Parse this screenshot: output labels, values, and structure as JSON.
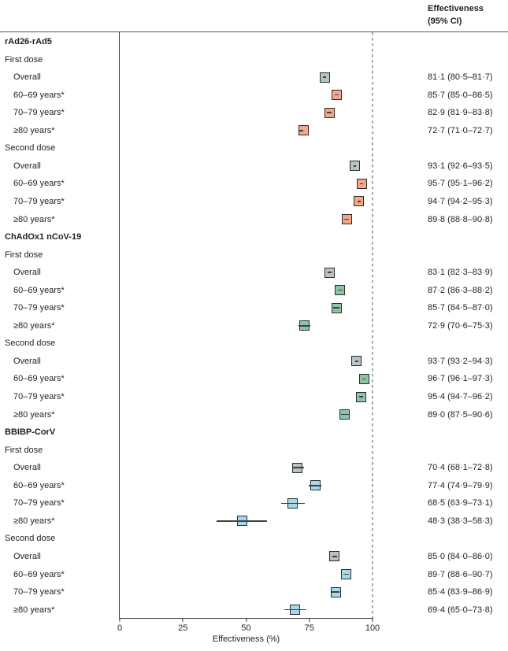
{
  "header": {
    "line1": "Effectiveness",
    "line2": "(95% CI)"
  },
  "colors": {
    "overall": "#b6c2c6",
    "rad26": "#f4a688",
    "chadox1": "#8dc4a5",
    "bbibp": "#a6d9e9",
    "marker_border": "#2b2b2b",
    "ci_line": "#404040",
    "reference_dash": "#9aabb2",
    "axis": "#3c3c3c"
  },
  "chart_data": {
    "type": "scatter",
    "variant": "forest-plot",
    "xlabel": "Effectiveness (%)",
    "xlim": [
      0,
      100
    ],
    "ticks": [
      0,
      25,
      50,
      75,
      100
    ],
    "reference_line_x": 100,
    "legend_note": "square = point estimate, horizontal line = 95% CI, dashed line at 100%",
    "rows": [
      {
        "kind": "group",
        "label": "rAd26-rAd5"
      },
      {
        "kind": "sub",
        "label": "First dose"
      },
      {
        "kind": "item",
        "label": "Overall",
        "color": "overall",
        "est": 81.1,
        "lo": 80.5,
        "hi": 81.7,
        "text": "81·1 (80·5–81·7)"
      },
      {
        "kind": "item",
        "label": "60–69 years*",
        "color": "rad26",
        "est": 85.7,
        "lo": 85.0,
        "hi": 86.5,
        "text": "85·7 (85·0–86·5)"
      },
      {
        "kind": "item",
        "label": "70–79 years*",
        "color": "rad26",
        "est": 82.9,
        "lo": 81.9,
        "hi": 83.8,
        "text": "82·9 (81·9–83·8)"
      },
      {
        "kind": "item",
        "label": "≥80 years*",
        "color": "rad26",
        "est": 72.7,
        "lo": 71.0,
        "hi": 72.7,
        "text": "72·7 (71·0–72·7)"
      },
      {
        "kind": "sub",
        "label": "Second dose"
      },
      {
        "kind": "item",
        "label": "Overall",
        "color": "overall",
        "est": 93.1,
        "lo": 92.6,
        "hi": 93.5,
        "text": "93·1 (92·6–93·5)"
      },
      {
        "kind": "item",
        "label": "60–69 years*",
        "color": "rad26",
        "est": 95.7,
        "lo": 95.1,
        "hi": 96.2,
        "text": "95·7 (95·1–96·2)"
      },
      {
        "kind": "item",
        "label": "70–79 years*",
        "color": "rad26",
        "est": 94.7,
        "lo": 94.2,
        "hi": 95.3,
        "text": "94·7 (94·2–95·3)"
      },
      {
        "kind": "item",
        "label": "≥80 years*",
        "color": "rad26",
        "est": 89.8,
        "lo": 88.8,
        "hi": 90.8,
        "text": "89·8 (88·8–90·8)"
      },
      {
        "kind": "group",
        "label": "ChAdOx1 nCoV-19"
      },
      {
        "kind": "sub",
        "label": "First dose"
      },
      {
        "kind": "item",
        "label": "Overall",
        "color": "overall",
        "est": 83.1,
        "lo": 82.3,
        "hi": 83.9,
        "text": "83·1 (82·3–83·9)"
      },
      {
        "kind": "item",
        "label": "60–69 years*",
        "color": "chadox1",
        "est": 87.2,
        "lo": 86.3,
        "hi": 88.2,
        "text": "87·2 (86·3–88·2)"
      },
      {
        "kind": "item",
        "label": "70–79 years*",
        "color": "chadox1",
        "est": 85.7,
        "lo": 84.5,
        "hi": 87.0,
        "text": "85·7 (84·5–87·0)"
      },
      {
        "kind": "item",
        "label": "≥80 years*",
        "color": "chadox1",
        "est": 72.9,
        "lo": 70.6,
        "hi": 75.3,
        "text": "72·9 (70·6–75·3)"
      },
      {
        "kind": "sub",
        "label": "Second dose"
      },
      {
        "kind": "item",
        "label": "Overall",
        "color": "overall",
        "est": 93.7,
        "lo": 93.2,
        "hi": 94.3,
        "text": "93·7 (93·2–94·3)"
      },
      {
        "kind": "item",
        "label": "60–69 years*",
        "color": "chadox1",
        "est": 96.7,
        "lo": 96.1,
        "hi": 97.3,
        "text": "96·7 (96·1–97·3)"
      },
      {
        "kind": "item",
        "label": "70–79 years*",
        "color": "chadox1",
        "est": 95.4,
        "lo": 94.7,
        "hi": 96.2,
        "text": "95·4 (94·7–96·2)"
      },
      {
        "kind": "item",
        "label": "≥80 years*",
        "color": "chadox1",
        "est": 89.0,
        "lo": 87.5,
        "hi": 90.6,
        "text": "89·0 (87·5–90·6)"
      },
      {
        "kind": "group",
        "label": "BBIBP-CorV"
      },
      {
        "kind": "sub",
        "label": "First dose"
      },
      {
        "kind": "item",
        "label": "Overall",
        "color": "overall",
        "est": 70.4,
        "lo": 68.1,
        "hi": 72.8,
        "text": "70·4 (68·1–72·8)"
      },
      {
        "kind": "item",
        "label": "60–69 years*",
        "color": "bbibp",
        "est": 77.4,
        "lo": 74.9,
        "hi": 79.9,
        "text": "77·4 (74·9–79·9)"
      },
      {
        "kind": "item",
        "label": "70–79 years*",
        "color": "bbibp",
        "est": 68.5,
        "lo": 63.9,
        "hi": 73.1,
        "text": "68·5 (63·9–73·1)"
      },
      {
        "kind": "item",
        "label": "≥80 years*",
        "color": "bbibp",
        "est": 48.3,
        "lo": 38.3,
        "hi": 58.3,
        "text": "48·3 (38·3–58·3)"
      },
      {
        "kind": "sub",
        "label": "Second dose"
      },
      {
        "kind": "item",
        "label": "Overall",
        "color": "overall",
        "est": 85.0,
        "lo": 84.0,
        "hi": 86.0,
        "text": "85·0 (84·0–86·0)"
      },
      {
        "kind": "item",
        "label": "60–69 years*",
        "color": "bbibp",
        "est": 89.7,
        "lo": 88.6,
        "hi": 90.7,
        "text": "89·7 (88·6–90·7)"
      },
      {
        "kind": "item",
        "label": "70–79 years*",
        "color": "bbibp",
        "est": 85.4,
        "lo": 83.9,
        "hi": 86.9,
        "text": "85·4 (83·9–86·9)"
      },
      {
        "kind": "item",
        "label": "≥80 years*",
        "color": "bbibp",
        "est": 69.4,
        "lo": 65.0,
        "hi": 73.8,
        "text": "69·4 (65·0–73·8)"
      }
    ]
  }
}
